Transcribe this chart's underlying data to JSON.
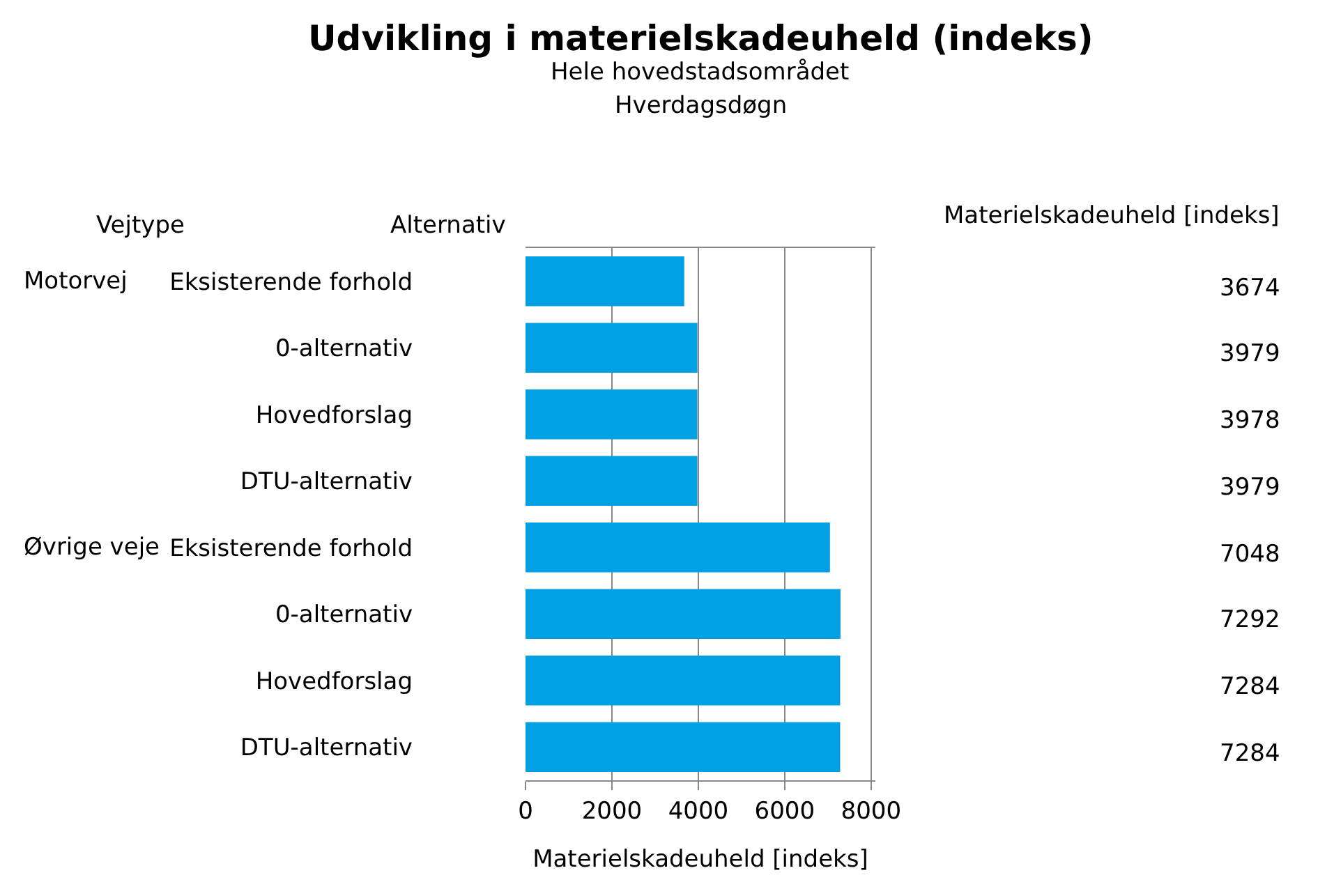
{
  "chart_data": {
    "type": "bar",
    "orientation": "horizontal",
    "title": "Udvikling i materielskadeuheld (indeks)",
    "subtitle": "Hele hovedstadsområdet\nHverdagsdøgn",
    "xlabel": "Materielskadeuheld [indeks]",
    "annotations": [
      "Vejtype",
      "Alternativ",
      "Materielskadeuheld [indeks]",
      "Motorvej",
      "Øvrige veje"
    ],
    "categories": [
      "Eksisterende forhold",
      "0-alternativ",
      "Hovedforslag",
      "DTU-alternativ",
      "Eksisterende forhold",
      "0-alternativ",
      "Hovedforslag",
      "DTU-alternativ"
    ],
    "values": [
      3674,
      3979,
      3978,
      3979,
      7048,
      7292,
      7284,
      7284
    ],
    "color": "#00a0e3",
    "xlim": [
      0,
      8100
    ],
    "xticks": [
      0,
      2000,
      4000,
      6000,
      8000
    ],
    "grid": "x",
    "data_labels": true
  }
}
